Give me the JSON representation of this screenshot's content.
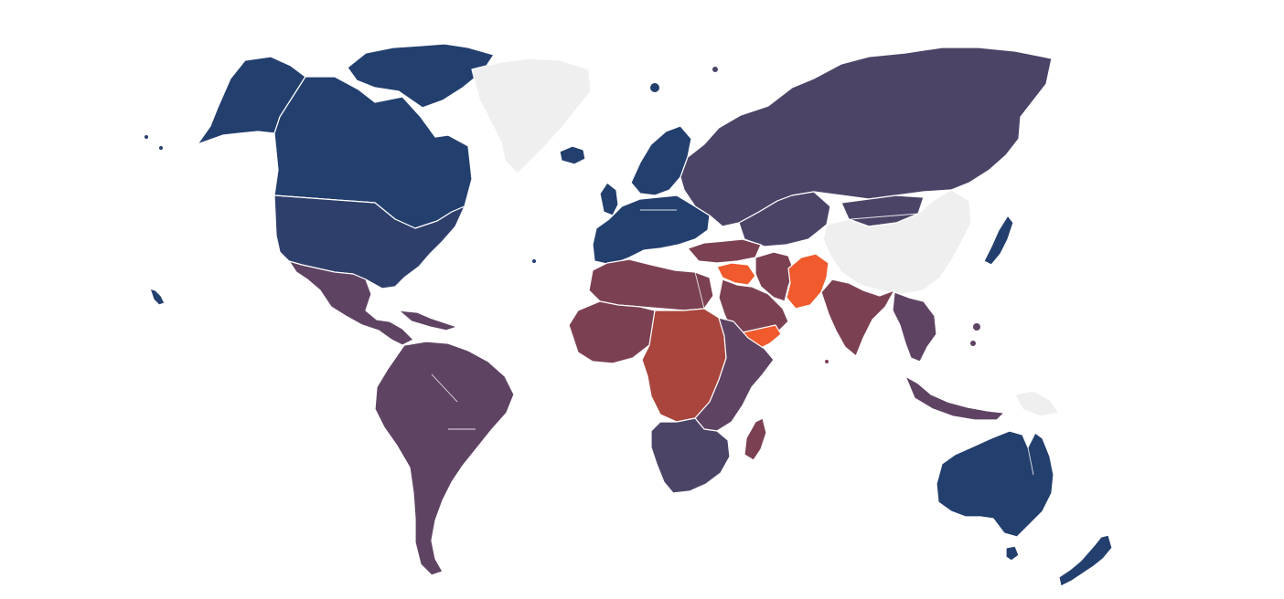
{
  "map": {
    "type": "choropleth-world",
    "legend": null,
    "palette": {
      "tier1": "#233f6e",
      "tier2": "#2e3f6b",
      "tier3": "#4c4467",
      "tier4": "#5f4363",
      "tier5": "#7b4152",
      "tier6": "#a9453c",
      "tier7": "#f05a2c",
      "nodata": "#efefef",
      "background": "#ffffff"
    },
    "regions": [
      {
        "id": "alaska",
        "tier": "tier1"
      },
      {
        "id": "canada",
        "tier": "tier1"
      },
      {
        "id": "canada-arctic",
        "tier": "tier1"
      },
      {
        "id": "united-states",
        "tier": "tier2"
      },
      {
        "id": "hawaii",
        "tier": "tier1"
      },
      {
        "id": "greenland",
        "tier": "nodata"
      },
      {
        "id": "iceland",
        "tier": "tier1"
      },
      {
        "id": "mexico-central-america",
        "tier": "tier4"
      },
      {
        "id": "caribbean",
        "tier": "tier4"
      },
      {
        "id": "south-america",
        "tier": "tier4"
      },
      {
        "id": "europe",
        "tier": "tier1"
      },
      {
        "id": "uk-ireland",
        "tier": "tier1"
      },
      {
        "id": "scandinavia",
        "tier": "tier1"
      },
      {
        "id": "russia",
        "tier": "tier3"
      },
      {
        "id": "central-asia",
        "tier": "tier3"
      },
      {
        "id": "mongolia",
        "tier": "tier3"
      },
      {
        "id": "china",
        "tier": "nodata"
      },
      {
        "id": "korea-japan",
        "tier": "tier1"
      },
      {
        "id": "turkey-caucasus",
        "tier": "tier5"
      },
      {
        "id": "middle-east",
        "tier": "tier5"
      },
      {
        "id": "syria-iraq",
        "tier": "tier7"
      },
      {
        "id": "afghanistan-pakistan",
        "tier": "tier7"
      },
      {
        "id": "yemen",
        "tier": "tier7"
      },
      {
        "id": "iran",
        "tier": "tier5"
      },
      {
        "id": "india",
        "tier": "tier5"
      },
      {
        "id": "southeast-asia",
        "tier": "tier4"
      },
      {
        "id": "indonesia",
        "tier": "tier4"
      },
      {
        "id": "papua",
        "tier": "nodata"
      },
      {
        "id": "north-africa",
        "tier": "tier5"
      },
      {
        "id": "west-africa",
        "tier": "tier5"
      },
      {
        "id": "central-africa",
        "tier": "tier6"
      },
      {
        "id": "east-africa",
        "tier": "tier4"
      },
      {
        "id": "southern-africa",
        "tier": "tier3"
      },
      {
        "id": "madagascar",
        "tier": "tier5"
      },
      {
        "id": "australia",
        "tier": "tier1"
      },
      {
        "id": "new-zealand",
        "tier": "tier1"
      }
    ]
  }
}
